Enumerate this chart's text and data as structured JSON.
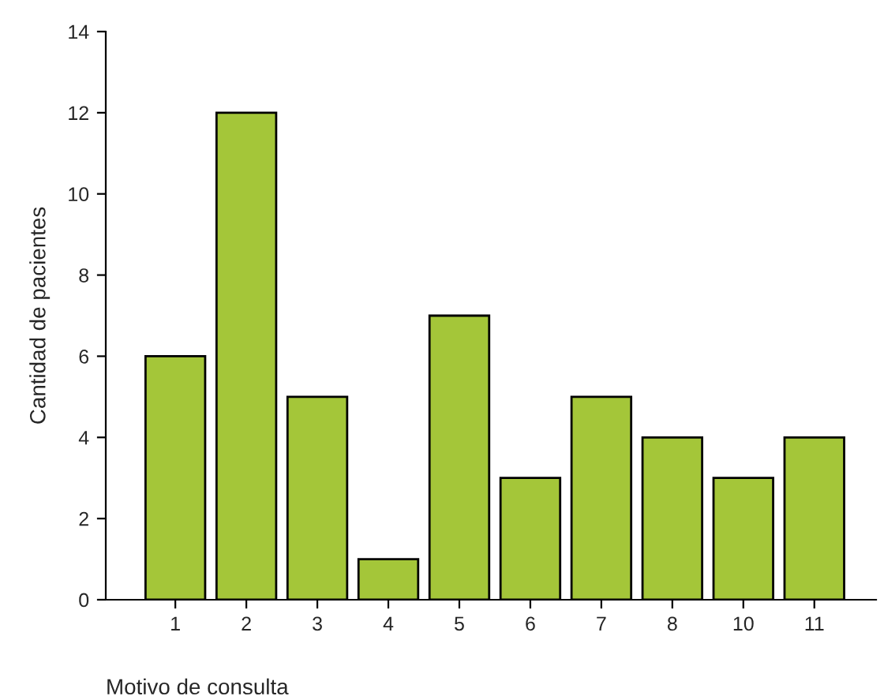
{
  "chart_data": {
    "type": "bar",
    "xlabel": "Motivo de consulta",
    "ylabel": "Cantidad de pacientes",
    "categories": [
      "1",
      "2",
      "3",
      "4",
      "5",
      "6",
      "7",
      "8",
      "10",
      "11"
    ],
    "values": [
      6,
      12,
      5,
      1,
      7,
      3,
      5,
      4,
      3,
      4
    ],
    "color": "#a4c639",
    "ylim": [
      0,
      14
    ],
    "yticks": [
      0,
      2,
      4,
      6,
      8,
      10,
      12,
      14
    ],
    "grid": false,
    "legend": false
  }
}
